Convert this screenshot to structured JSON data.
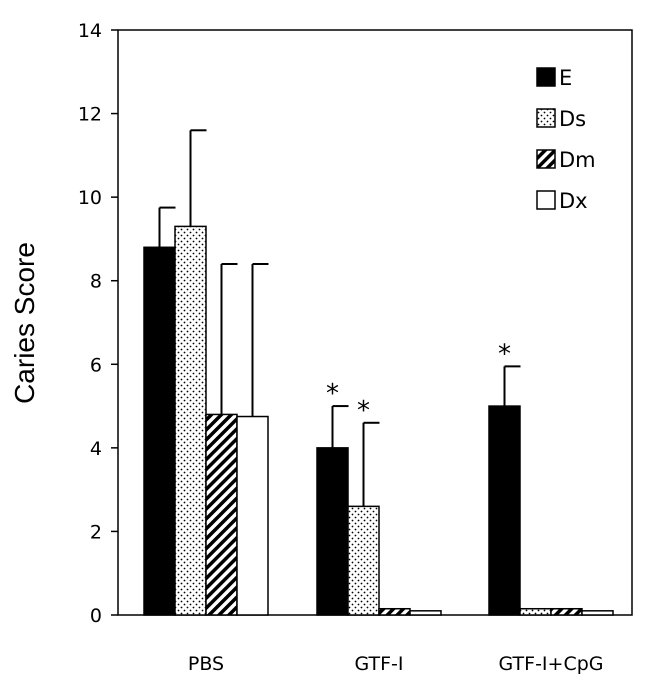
{
  "chart_data": {
    "type": "bar",
    "ylabel": "Caries Score",
    "xlabel": "",
    "ylim": [
      0,
      14
    ],
    "yticks": [
      0,
      2,
      4,
      6,
      8,
      10,
      12,
      14
    ],
    "categories": [
      "PBS",
      "GTF-I",
      "GTF-I+CpG"
    ],
    "grid": false,
    "legend_position": "top-right",
    "series": [
      {
        "name": "E",
        "pattern": "solid",
        "color": "#000000",
        "values": [
          8.8,
          4.0,
          5.0
        ],
        "errors": [
          0.95,
          1.0,
          0.95
        ],
        "significant": [
          false,
          true,
          true
        ]
      },
      {
        "name": "Ds",
        "pattern": "dots",
        "color": "#000000",
        "values": [
          9.3,
          2.6,
          0.15
        ],
        "errors": [
          2.3,
          2.0,
          0
        ],
        "significant": [
          false,
          true,
          false
        ]
      },
      {
        "name": "Dm",
        "pattern": "hatch",
        "color": "#000000",
        "values": [
          4.8,
          0.15,
          0.15
        ],
        "errors": [
          3.6,
          0,
          0
        ],
        "significant": [
          false,
          false,
          false
        ]
      },
      {
        "name": "Dx",
        "pattern": "hollow",
        "color": "#000000",
        "values": [
          4.75,
          0.1,
          0.1
        ],
        "errors": [
          3.65,
          0,
          0
        ],
        "significant": [
          false,
          false,
          false
        ]
      }
    ],
    "significance_marker": "*"
  }
}
